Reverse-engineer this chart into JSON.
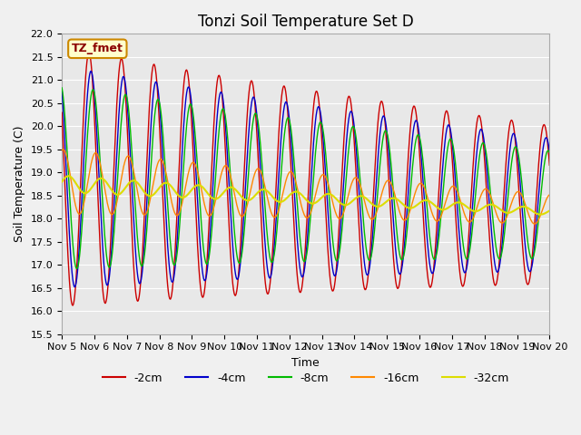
{
  "title": "Tonzi Soil Temperature Set D",
  "xlabel": "Time",
  "ylabel": "Soil Temperature (C)",
  "ylim": [
    15.5,
    22.0
  ],
  "yticks": [
    15.5,
    16.0,
    16.5,
    17.0,
    17.5,
    18.0,
    18.5,
    19.0,
    19.5,
    20.0,
    20.5,
    21.0,
    21.5,
    22.0
  ],
  "line_colors": {
    "2cm": "#cc0000",
    "4cm": "#0000cc",
    "8cm": "#00bb00",
    "16cm": "#ff8800",
    "32cm": "#dddd00"
  },
  "legend_labels": [
    "-2cm",
    "-4cm",
    "-8cm",
    "-16cm",
    "-32cm"
  ],
  "legend_colors": [
    "#cc0000",
    "#0000cc",
    "#00bb00",
    "#ff8800",
    "#dddd00"
  ],
  "annotation_text": "TZ_fmet",
  "annotation_bg": "#ffffcc",
  "annotation_border": "#cc8800",
  "n_points": 720,
  "x_start": 5.0,
  "x_end": 20.0,
  "xtick_positions": [
    5,
    6,
    7,
    8,
    9,
    10,
    11,
    12,
    13,
    14,
    15,
    16,
    17,
    18,
    19,
    20
  ],
  "xtick_labels": [
    "Nov 5",
    "Nov 6",
    "Nov 7",
    "Nov 8",
    "Nov 9",
    "Nov 10",
    "Nov 11",
    "Nov 12",
    "Nov 13",
    "Nov 14",
    "Nov 15",
    "Nov 16",
    "Nov 17",
    "Nov 18",
    "Nov 19",
    "Nov 20"
  ],
  "title_fontsize": 12,
  "label_fontsize": 9,
  "tick_fontsize": 8
}
